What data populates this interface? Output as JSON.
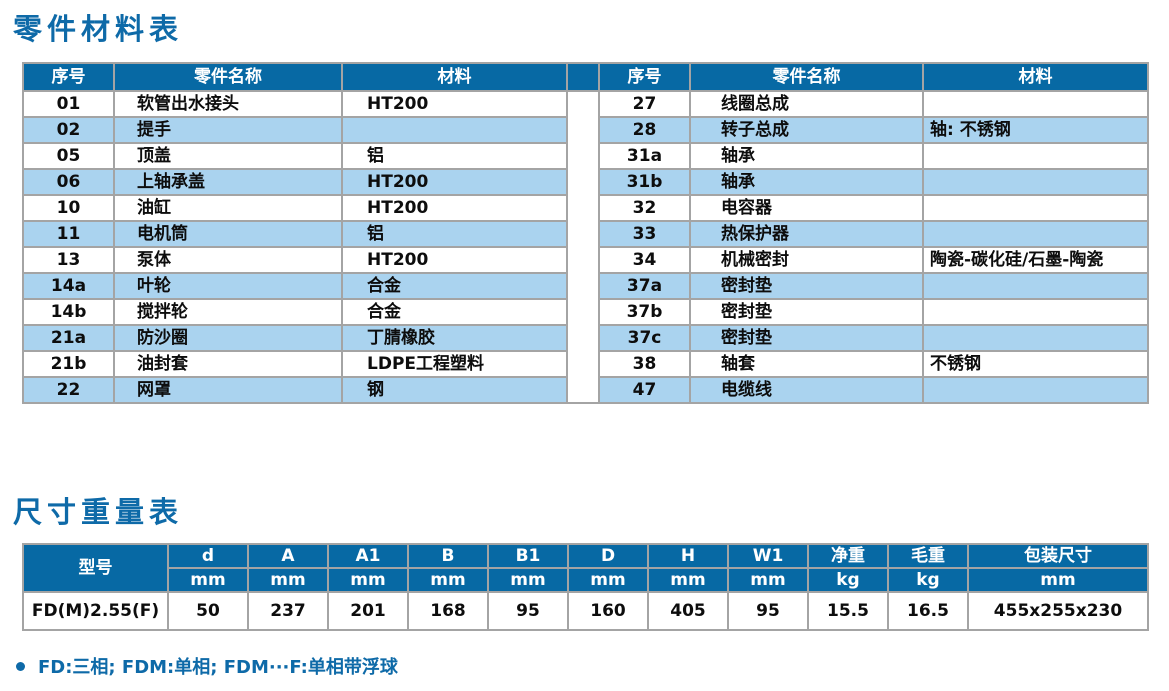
{
  "titles": {
    "parts": "零件材料表",
    "dimensions": "尺寸重量表"
  },
  "parts_table": {
    "headers": {
      "no": "序号",
      "name": "零件名称",
      "material": "材料"
    },
    "left_rows": [
      {
        "no": "01",
        "name": "软管出水接头",
        "material": "HT200"
      },
      {
        "no": "02",
        "name": "提手",
        "material": ""
      },
      {
        "no": "05",
        "name": "顶盖",
        "material": "铝"
      },
      {
        "no": "06",
        "name": "上轴承盖",
        "material": "HT200"
      },
      {
        "no": "10",
        "name": "油缸",
        "material": "HT200"
      },
      {
        "no": "11",
        "name": "电机筒",
        "material": "铝"
      },
      {
        "no": "13",
        "name": "泵体",
        "material": "HT200"
      },
      {
        "no": "14a",
        "name": "叶轮",
        "material": "合金"
      },
      {
        "no": "14b",
        "name": "搅拌轮",
        "material": "合金"
      },
      {
        "no": "21a",
        "name": "防沙圈",
        "material": "丁腈橡胶"
      },
      {
        "no": "21b",
        "name": "油封套",
        "material": "LDPE工程塑料"
      },
      {
        "no": "22",
        "name": "网罩",
        "material": "钢"
      }
    ],
    "right_rows": [
      {
        "no": "27",
        "name": "线圈总成",
        "material": ""
      },
      {
        "no": "28",
        "name": "转子总成",
        "material": "轴: 不锈钢"
      },
      {
        "no": "31a",
        "name": "轴承",
        "material": ""
      },
      {
        "no": "31b",
        "name": "轴承",
        "material": ""
      },
      {
        "no": "32",
        "name": "电容器",
        "material": ""
      },
      {
        "no": "33",
        "name": "热保护器",
        "material": ""
      },
      {
        "no": "34",
        "name": "机械密封",
        "material": "陶瓷-碳化硅/石墨-陶瓷"
      },
      {
        "no": "37a",
        "name": "密封垫",
        "material": ""
      },
      {
        "no": "37b",
        "name": "密封垫",
        "material": ""
      },
      {
        "no": "37c",
        "name": "密封垫",
        "material": ""
      },
      {
        "no": "38",
        "name": "轴套",
        "material": "不锈钢"
      },
      {
        "no": "47",
        "name": "电缆线",
        "material": ""
      }
    ]
  },
  "dimensions_table": {
    "model_header": "型号",
    "columns": [
      {
        "label": "d",
        "unit": "mm"
      },
      {
        "label": "A",
        "unit": "mm"
      },
      {
        "label": "A1",
        "unit": "mm"
      },
      {
        "label": "B",
        "unit": "mm"
      },
      {
        "label": "B1",
        "unit": "mm"
      },
      {
        "label": "D",
        "unit": "mm"
      },
      {
        "label": "H",
        "unit": "mm"
      },
      {
        "label": "W1",
        "unit": "mm"
      },
      {
        "label": "净重",
        "unit": "kg"
      },
      {
        "label": "毛重",
        "unit": "kg"
      },
      {
        "label": "包装尺寸",
        "unit": "mm"
      }
    ],
    "rows": [
      {
        "model": "FD(M)2.55(F)",
        "values": [
          "50",
          "237",
          "201",
          "168",
          "95",
          "160",
          "405",
          "95",
          "15.5",
          "16.5",
          "455x255x230"
        ]
      }
    ]
  },
  "footnote": {
    "text": "FD:三相; FDM:单相; FDM···F:单相带浮球"
  },
  "colors": {
    "header_blue": "#0769a4",
    "stripe_blue": "#aad3ef",
    "title_blue": "#0e6aa8",
    "border_grey": "#a4a4a4"
  }
}
